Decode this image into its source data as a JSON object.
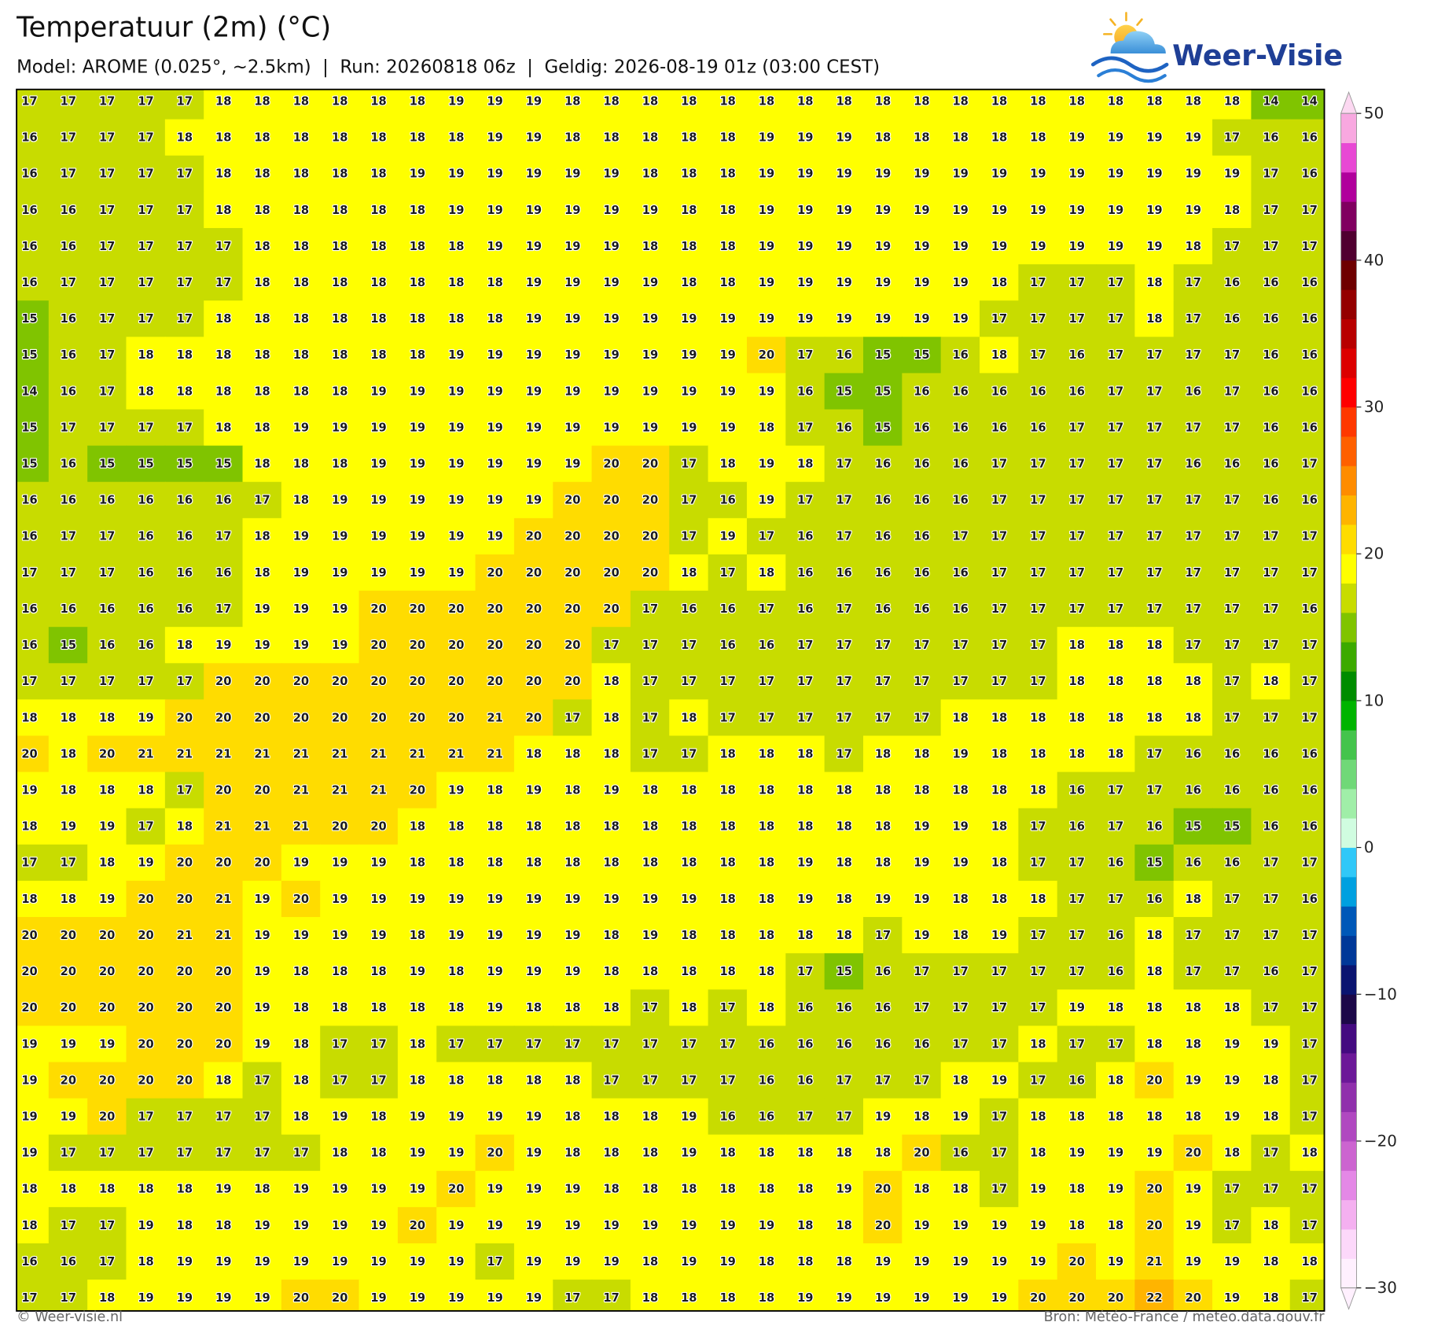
{
  "header": {
    "title": "Temperatuur (2m) (°C)",
    "subtitle": "Model: AROME (0.025°, ~2.5km)  |  Run: 20260818 06z  |  Geldig: 2026-08-19 01z (03:00 CEST)"
  },
  "logo": {
    "text": "Weer-Visie"
  },
  "footer": {
    "left": "© Weer-visie.nl",
    "right": "Bron: Météo-France / meteo.data.gouv.fr"
  },
  "colorbar": {
    "lim": [
      -30,
      50
    ],
    "ticks": [
      50,
      40,
      30,
      20,
      10,
      0,
      {
        "value": -10,
        "label": "−10"
      },
      {
        "value": -20,
        "label": "−20"
      },
      {
        "value": -30,
        "label": "−30"
      }
    ],
    "colors": [
      "#fff0fe",
      "#fcd8fa",
      "#f4b0f0",
      "#e488e6",
      "#cc64d0",
      "#b048c0",
      "#9030ac",
      "#6c1898",
      "#440a80",
      "#1c0848",
      "#0a1470",
      "#003898",
      "#0058b8",
      "#00a0e0",
      "#30c8f8",
      "#d0fce0",
      "#a0eea8",
      "#70d878",
      "#44c44c",
      "#00b400",
      "#008c00",
      "#3caa00",
      "#80c400",
      "#c8dc00",
      "#ffff00",
      "#ffdc00",
      "#ffb400",
      "#ff8c00",
      "#ff6000",
      "#ff3800",
      "#ff0000",
      "#dc0000",
      "#b80000",
      "#940000",
      "#6e0000",
      "#500030",
      "#800060",
      "#b0009c",
      "#e848d4",
      "#f8a8e0"
    ]
  },
  "grid": {
    "rows": [
      [
        17,
        17,
        17,
        17,
        17,
        18,
        18,
        18,
        18,
        18,
        18,
        19,
        19,
        19,
        18,
        18,
        18,
        18,
        18,
        18,
        18,
        18,
        18,
        18,
        18,
        18,
        18,
        18,
        18,
        18,
        18,
        18,
        14,
        14
      ],
      [
        16,
        17,
        17,
        17,
        18,
        18,
        18,
        18,
        18,
        18,
        18,
        18,
        19,
        19,
        18,
        18,
        18,
        18,
        18,
        19,
        19,
        19,
        18,
        18,
        18,
        18,
        18,
        19,
        19,
        19,
        19,
        17,
        16,
        16
      ],
      [
        16,
        17,
        17,
        17,
        17,
        18,
        18,
        18,
        18,
        18,
        19,
        19,
        19,
        19,
        19,
        19,
        18,
        18,
        18,
        19,
        19,
        19,
        19,
        19,
        19,
        19,
        19,
        19,
        19,
        19,
        19,
        19,
        17,
        16
      ],
      [
        16,
        16,
        17,
        17,
        17,
        18,
        18,
        18,
        18,
        18,
        18,
        19,
        19,
        19,
        19,
        19,
        19,
        18,
        18,
        19,
        19,
        19,
        19,
        19,
        19,
        19,
        19,
        19,
        19,
        19,
        19,
        18,
        17,
        17
      ],
      [
        16,
        16,
        17,
        17,
        17,
        17,
        18,
        18,
        18,
        18,
        18,
        18,
        19,
        19,
        19,
        19,
        18,
        18,
        18,
        19,
        19,
        19,
        19,
        19,
        19,
        19,
        19,
        19,
        19,
        19,
        18,
        17,
        17,
        17
      ],
      [
        16,
        17,
        17,
        17,
        17,
        17,
        18,
        18,
        18,
        18,
        18,
        18,
        18,
        19,
        19,
        19,
        19,
        18,
        18,
        19,
        19,
        19,
        19,
        19,
        19,
        18,
        17,
        17,
        17,
        18,
        17,
        16,
        16,
        16
      ],
      [
        15,
        16,
        17,
        17,
        17,
        18,
        18,
        18,
        18,
        18,
        18,
        18,
        18,
        19,
        19,
        19,
        19,
        19,
        19,
        19,
        19,
        19,
        19,
        19,
        19,
        17,
        17,
        17,
        17,
        18,
        17,
        16,
        16,
        16
      ],
      [
        15,
        16,
        17,
        18,
        18,
        18,
        18,
        18,
        18,
        18,
        18,
        19,
        19,
        19,
        19,
        19,
        19,
        19,
        19,
        20,
        17,
        16,
        15,
        15,
        16,
        18,
        17,
        16,
        17,
        17,
        17,
        17,
        16,
        16
      ],
      [
        14,
        16,
        17,
        18,
        18,
        18,
        18,
        18,
        18,
        19,
        19,
        19,
        19,
        19,
        19,
        19,
        19,
        19,
        19,
        19,
        16,
        15,
        15,
        16,
        16,
        16,
        16,
        16,
        17,
        17,
        16,
        17,
        16,
        16
      ],
      [
        15,
        17,
        17,
        17,
        17,
        18,
        18,
        19,
        19,
        19,
        19,
        19,
        19,
        19,
        19,
        19,
        19,
        19,
        19,
        18,
        17,
        16,
        15,
        16,
        16,
        16,
        16,
        17,
        17,
        17,
        17,
        17,
        16,
        16
      ],
      [
        15,
        16,
        15,
        15,
        15,
        15,
        18,
        18,
        18,
        19,
        19,
        19,
        19,
        19,
        19,
        20,
        20,
        17,
        18,
        19,
        18,
        17,
        16,
        16,
        16,
        17,
        17,
        17,
        17,
        17,
        16,
        16,
        16,
        17
      ],
      [
        16,
        16,
        16,
        16,
        16,
        16,
        17,
        18,
        19,
        19,
        19,
        19,
        19,
        19,
        20,
        20,
        20,
        17,
        16,
        19,
        17,
        17,
        16,
        16,
        16,
        17,
        17,
        17,
        17,
        17,
        17,
        17,
        16,
        16
      ],
      [
        16,
        17,
        17,
        16,
        16,
        17,
        18,
        19,
        19,
        19,
        19,
        19,
        19,
        20,
        20,
        20,
        20,
        17,
        19,
        17,
        16,
        17,
        16,
        16,
        17,
        17,
        17,
        17,
        17,
        17,
        17,
        17,
        17,
        17
      ],
      [
        17,
        17,
        17,
        16,
        16,
        16,
        18,
        19,
        19,
        19,
        19,
        19,
        20,
        20,
        20,
        20,
        20,
        18,
        17,
        18,
        16,
        16,
        16,
        16,
        16,
        17,
        17,
        17,
        17,
        17,
        17,
        17,
        17,
        17
      ],
      [
        16,
        16,
        16,
        16,
        16,
        17,
        19,
        19,
        19,
        20,
        20,
        20,
        20,
        20,
        20,
        20,
        17,
        16,
        16,
        17,
        16,
        17,
        16,
        16,
        16,
        17,
        17,
        17,
        17,
        17,
        17,
        17,
        17,
        16
      ],
      [
        16,
        15,
        16,
        16,
        18,
        19,
        19,
        19,
        19,
        20,
        20,
        20,
        20,
        20,
        20,
        17,
        17,
        17,
        16,
        16,
        17,
        17,
        17,
        17,
        17,
        17,
        17,
        18,
        18,
        18,
        17,
        17,
        17,
        17
      ],
      [
        17,
        17,
        17,
        17,
        17,
        20,
        20,
        20,
        20,
        20,
        20,
        20,
        20,
        20,
        20,
        18,
        17,
        17,
        17,
        17,
        17,
        17,
        17,
        17,
        17,
        17,
        17,
        18,
        18,
        18,
        18,
        17,
        18,
        17
      ],
      [
        18,
        18,
        18,
        19,
        20,
        20,
        20,
        20,
        20,
        20,
        20,
        20,
        21,
        20,
        17,
        18,
        17,
        18,
        17,
        17,
        17,
        17,
        17,
        17,
        18,
        18,
        18,
        18,
        18,
        18,
        18,
        17,
        17,
        17
      ],
      [
        20,
        18,
        20,
        21,
        21,
        21,
        21,
        21,
        21,
        21,
        21,
        21,
        21,
        18,
        18,
        18,
        17,
        17,
        18,
        18,
        18,
        17,
        18,
        18,
        19,
        18,
        18,
        18,
        18,
        17,
        16,
        16,
        16,
        16
      ],
      [
        19,
        18,
        18,
        18,
        17,
        20,
        20,
        21,
        21,
        21,
        20,
        19,
        18,
        19,
        18,
        19,
        18,
        18,
        18,
        18,
        18,
        18,
        18,
        18,
        18,
        18,
        18,
        16,
        17,
        17,
        16,
        16,
        16,
        16
      ],
      [
        18,
        19,
        19,
        17,
        18,
        21,
        21,
        21,
        20,
        20,
        18,
        18,
        18,
        18,
        18,
        18,
        18,
        18,
        18,
        18,
        18,
        18,
        18,
        19,
        19,
        18,
        17,
        16,
        17,
        16,
        15,
        15,
        16,
        16
      ],
      [
        17,
        17,
        18,
        19,
        20,
        20,
        20,
        19,
        19,
        19,
        18,
        18,
        18,
        18,
        18,
        18,
        18,
        18,
        18,
        18,
        19,
        18,
        18,
        19,
        19,
        18,
        17,
        17,
        16,
        15,
        16,
        16,
        17,
        17
      ],
      [
        18,
        18,
        19,
        20,
        20,
        21,
        19,
        20,
        19,
        19,
        19,
        19,
        19,
        19,
        19,
        19,
        19,
        19,
        18,
        18,
        19,
        18,
        19,
        19,
        18,
        18,
        18,
        17,
        17,
        16,
        18,
        17,
        17,
        16
      ],
      [
        20,
        20,
        20,
        20,
        21,
        21,
        19,
        19,
        19,
        19,
        18,
        19,
        19,
        19,
        19,
        18,
        19,
        18,
        18,
        18,
        18,
        18,
        17,
        19,
        18,
        19,
        17,
        17,
        16,
        18,
        17,
        17,
        17,
        17
      ],
      [
        20,
        20,
        20,
        20,
        20,
        20,
        19,
        18,
        18,
        18,
        19,
        18,
        19,
        19,
        19,
        18,
        18,
        18,
        18,
        18,
        17,
        15,
        16,
        17,
        17,
        17,
        17,
        17,
        16,
        18,
        17,
        17,
        16,
        17
      ],
      [
        20,
        20,
        20,
        20,
        20,
        20,
        19,
        18,
        18,
        18,
        18,
        18,
        19,
        18,
        18,
        18,
        17,
        18,
        17,
        18,
        16,
        16,
        16,
        17,
        17,
        17,
        17,
        19,
        18,
        18,
        18,
        18,
        17,
        17
      ],
      [
        19,
        19,
        19,
        20,
        20,
        20,
        19,
        18,
        17,
        17,
        18,
        17,
        17,
        17,
        17,
        17,
        17,
        17,
        17,
        16,
        16,
        16,
        16,
        16,
        17,
        17,
        18,
        17,
        17,
        18,
        18,
        19,
        19,
        17
      ],
      [
        19,
        20,
        20,
        20,
        20,
        18,
        17,
        18,
        17,
        17,
        18,
        18,
        18,
        18,
        18,
        17,
        17,
        17,
        17,
        16,
        16,
        17,
        17,
        17,
        18,
        19,
        17,
        16,
        18,
        20,
        19,
        19,
        18,
        17
      ],
      [
        19,
        19,
        20,
        17,
        17,
        17,
        17,
        18,
        19,
        18,
        19,
        19,
        19,
        19,
        18,
        18,
        18,
        19,
        16,
        16,
        17,
        17,
        19,
        18,
        19,
        17,
        18,
        18,
        18,
        18,
        18,
        19,
        18,
        17
      ],
      [
        19,
        17,
        17,
        17,
        17,
        17,
        17,
        17,
        18,
        18,
        19,
        19,
        20,
        19,
        18,
        18,
        18,
        19,
        18,
        18,
        18,
        18,
        18,
        20,
        16,
        17,
        18,
        19,
        19,
        19,
        20,
        18,
        17,
        18
      ],
      [
        18,
        18,
        18,
        18,
        18,
        19,
        18,
        19,
        19,
        19,
        19,
        20,
        19,
        19,
        19,
        18,
        18,
        18,
        18,
        18,
        18,
        19,
        20,
        18,
        18,
        17,
        19,
        18,
        19,
        20,
        19,
        17,
        17,
        17
      ],
      [
        18,
        17,
        17,
        19,
        18,
        18,
        19,
        19,
        19,
        19,
        20,
        19,
        19,
        19,
        19,
        19,
        19,
        19,
        19,
        19,
        18,
        18,
        20,
        19,
        19,
        19,
        19,
        18,
        18,
        20,
        19,
        17,
        18,
        17
      ],
      [
        16,
        16,
        17,
        18,
        19,
        19,
        19,
        19,
        19,
        19,
        19,
        19,
        17,
        19,
        19,
        19,
        18,
        19,
        19,
        18,
        18,
        18,
        19,
        19,
        19,
        19,
        19,
        20,
        19,
        21,
        19,
        19,
        18,
        18
      ],
      [
        17,
        17,
        18,
        19,
        19,
        19,
        19,
        20,
        20,
        19,
        19,
        19,
        19,
        19,
        17,
        17,
        18,
        18,
        18,
        18,
        19,
        19,
        19,
        19,
        19,
        19,
        20,
        20,
        20,
        22,
        20,
        19,
        18,
        17
      ]
    ]
  }
}
